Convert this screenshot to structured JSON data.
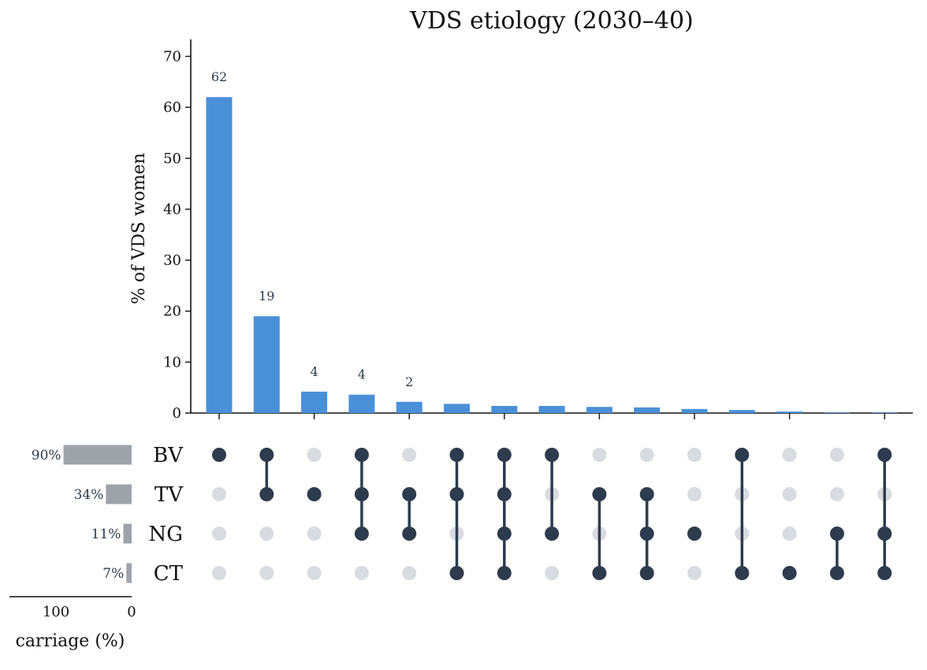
{
  "chart_data": {
    "type": "bar",
    "title": "VDS etiology (2030–40)",
    "ylabel": "% of VDS women",
    "ylim": [
      0,
      73
    ],
    "yticks": [
      0,
      10,
      20,
      30,
      40,
      50,
      60,
      70
    ],
    "sets": [
      "BV",
      "TV",
      "NG",
      "CT"
    ],
    "set_sizes": [
      90,
      34,
      11,
      7
    ],
    "set_size_labels": [
      "90%",
      "34%",
      "11%",
      "7%"
    ],
    "set_size_xlabel": "carriage (%)",
    "set_size_xticks": [
      100,
      0
    ],
    "intersections": [
      {
        "members": [
          "BV"
        ],
        "value": 62,
        "label": "62"
      },
      {
        "members": [
          "BV",
          "TV"
        ],
        "value": 19,
        "label": "19"
      },
      {
        "members": [
          "TV"
        ],
        "value": 4.2,
        "label": "4"
      },
      {
        "members": [
          "BV",
          "TV",
          "NG"
        ],
        "value": 3.6,
        "label": "4"
      },
      {
        "members": [
          "TV",
          "NG"
        ],
        "value": 2.2,
        "label": "2"
      },
      {
        "members": [
          "BV",
          "TV",
          "CT"
        ],
        "value": 1.8,
        "label": ""
      },
      {
        "members": [
          "BV",
          "TV",
          "NG",
          "CT"
        ],
        "value": 1.4,
        "label": ""
      },
      {
        "members": [
          "BV",
          "NG"
        ],
        "value": 1.4,
        "label": ""
      },
      {
        "members": [
          "TV",
          "CT"
        ],
        "value": 1.2,
        "label": ""
      },
      {
        "members": [
          "TV",
          "NG",
          "CT"
        ],
        "value": 1.1,
        "label": ""
      },
      {
        "members": [
          "NG"
        ],
        "value": 0.8,
        "label": ""
      },
      {
        "members": [
          "BV",
          "CT"
        ],
        "value": 0.6,
        "label": ""
      },
      {
        "members": [
          "CT"
        ],
        "value": 0.3,
        "label": ""
      },
      {
        "members": [
          "NG",
          "CT"
        ],
        "value": 0.1,
        "label": ""
      },
      {
        "members": [
          "BV",
          "NG",
          "CT"
        ],
        "value": 0.1,
        "label": ""
      }
    ],
    "colors": {
      "bar": "#4a90d9",
      "dot_active": "#2e3b4e",
      "dot_inactive": "#d8dbe0",
      "set_bar": "#9ea3a9",
      "axis": "#111111"
    }
  }
}
